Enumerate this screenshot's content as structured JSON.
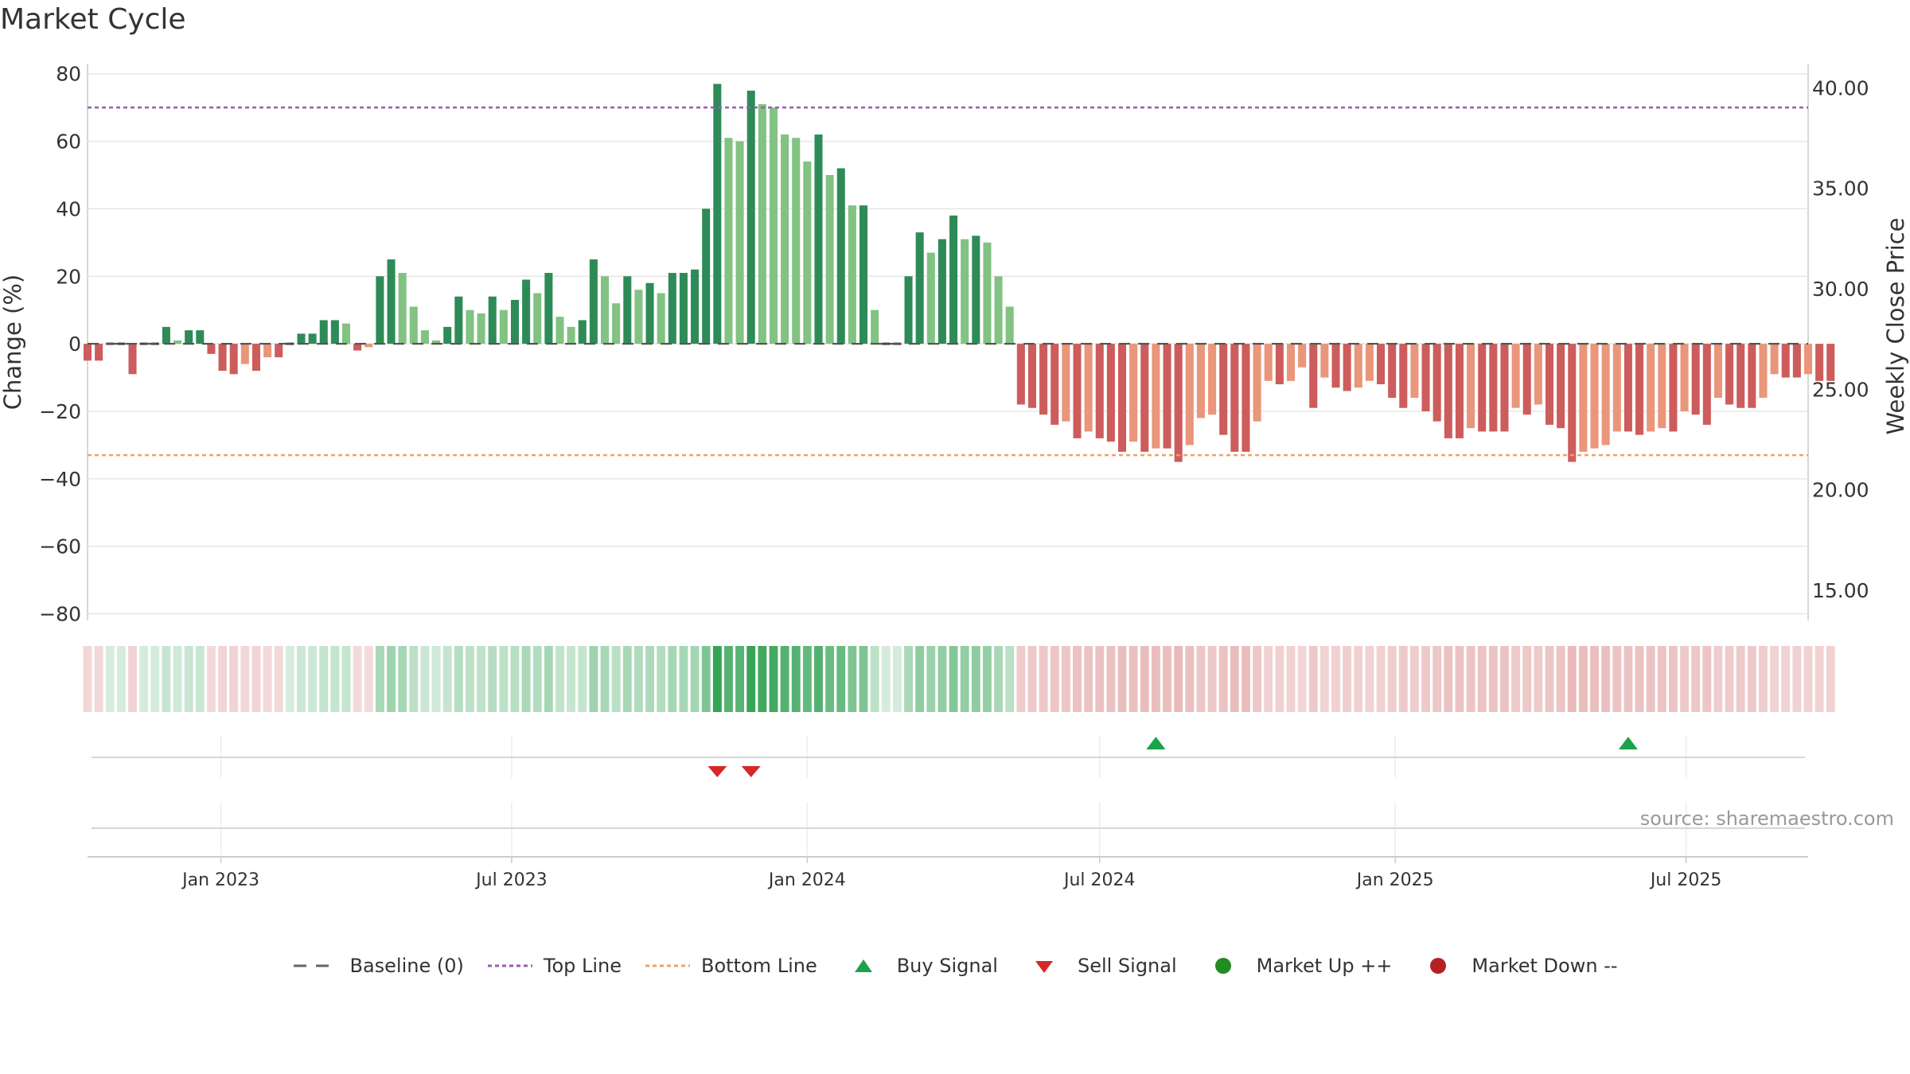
{
  "chart_data": {
    "type": "bar",
    "title": "Market Cycle",
    "ylabel_left": "Change (%)",
    "ylabel_right": "Weekly Close Price",
    "ylim": [
      -82,
      83
    ],
    "yticks": [
      80,
      60,
      40,
      20,
      0,
      -20,
      -40,
      -60,
      -80
    ],
    "ytick_labels": [
      "80",
      "60",
      "40",
      "20",
      "0",
      "−20",
      "−40",
      "−60",
      "−80"
    ],
    "y2ticks": [
      "40.00",
      "35.00",
      "30.00",
      "25.00",
      "20.00",
      "15.00"
    ],
    "y2values": [
      40,
      35,
      30,
      25,
      20,
      15
    ],
    "y2lim": [
      13.5,
      41.2
    ],
    "top_line": 70,
    "bottom_line": -33,
    "x_start": "2022-10-10",
    "x_end": "2025-09-15",
    "x_step_days": 7,
    "xtick_dates": [
      "2023-01-01",
      "2023-07-01",
      "2024-01-01",
      "2024-07-01",
      "2025-01-01",
      "2025-07-01"
    ],
    "xtick_labels": [
      "Jan 2023",
      "Jul 2023",
      "Jan 2024",
      "Jul 2024",
      "Jan 2025",
      "Jul 2025"
    ],
    "values": [
      -5,
      -5,
      0,
      0,
      -9,
      0,
      0,
      5,
      1,
      4,
      4,
      -3,
      -8,
      -9,
      -6,
      -8,
      -4,
      -4,
      0,
      3,
      3,
      7,
      7,
      6,
      -2,
      -1,
      20,
      25,
      21,
      11,
      4,
      1,
      5,
      14,
      10,
      9,
      14,
      10,
      13,
      19,
      15,
      21,
      8,
      5,
      7,
      25,
      20,
      12,
      20,
      16,
      18,
      15,
      21,
      21,
      22,
      40,
      77,
      61,
      60,
      75,
      71,
      70,
      62,
      61,
      54,
      62,
      50,
      52,
      41,
      41,
      10,
      0,
      0,
      20,
      33,
      27,
      31,
      38,
      31,
      32,
      30,
      20,
      11,
      -18,
      -19,
      -21,
      -24,
      -23,
      -28,
      -26,
      -28,
      -29,
      -32,
      -29,
      -32,
      -31,
      -31,
      -35,
      -30,
      -22,
      -21,
      -27,
      -32,
      -32,
      -23,
      -11,
      -12,
      -11,
      -7,
      -19,
      -10,
      -13,
      -14,
      -13,
      -11,
      -12,
      -16,
      -19,
      -16,
      -20,
      -23,
      -28,
      -28,
      -25,
      -26,
      -26,
      -26,
      -19,
      -21,
      -18,
      -24,
      -25,
      -35,
      -32,
      -31,
      -30,
      -26,
      -26,
      -27,
      -26,
      -25,
      -26,
      -20,
      -21,
      -24,
      -16,
      -18,
      -19,
      -19,
      -16,
      -9,
      -10,
      -10,
      -9,
      -11,
      -11
    ],
    "buy_signals": [
      "2024-08-05",
      "2025-05-26"
    ],
    "sell_signals": [
      "2023-11-06",
      "2023-11-27"
    ],
    "colors": {
      "up_strong": "#2e8b57",
      "up_weak": "#82c282",
      "down_strong": "#cd5c5c",
      "down_weak": "#e9967a",
      "top_line": "#9b59b6",
      "bottom_line": "#f0a060",
      "buy": "#1aa34a",
      "sell": "#d62728",
      "market_up": "#228b22",
      "market_down": "#b22222"
    }
  },
  "legend": {
    "baseline": "Baseline (0)",
    "top_line": "Top Line",
    "bottom_line": "Bottom Line",
    "buy_signal": "Buy Signal",
    "sell_signal": "Sell Signal",
    "market_up": "Market Up ++",
    "market_down": "Market Down --"
  },
  "source": "source: sharemaestro.com"
}
